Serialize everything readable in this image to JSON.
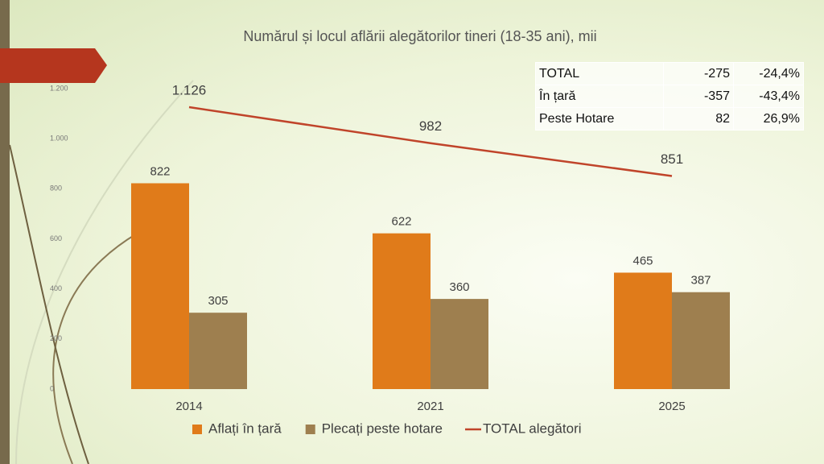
{
  "chart_data": {
    "type": "bar",
    "title": "Numărul și locul aflării alegătorilor tineri (18-35 ani), mii",
    "categories": [
      "2014",
      "2021",
      "2025"
    ],
    "series": [
      {
        "name": "Aflați în țară",
        "type": "bar",
        "color": "#e07b1a",
        "values": [
          822,
          622,
          465
        ]
      },
      {
        "name": "Plecați peste hotare",
        "type": "bar",
        "color": "#9e7f4f",
        "values": [
          305,
          360,
          387
        ]
      },
      {
        "name": "TOTAL alegători",
        "type": "line",
        "color": "#c0442a",
        "values": [
          1126,
          982,
          851
        ],
        "value_labels": [
          "1.126",
          "982",
          "851"
        ]
      }
    ],
    "ylim": [
      0,
      1200
    ],
    "yticks": [
      0,
      200,
      400,
      600,
      800,
      {
        "value": 1000,
        "label": "1.000"
      },
      {
        "value": 1200,
        "label": "1.200"
      }
    ],
    "grid": false,
    "legend": "bottom"
  },
  "table": {
    "rows": [
      [
        "TOTAL",
        "-275",
        "-24,4%"
      ],
      [
        "În țară",
        "-357",
        "-43,4%"
      ],
      [
        "Peste Hotare",
        "82",
        "26,9%"
      ]
    ]
  }
}
